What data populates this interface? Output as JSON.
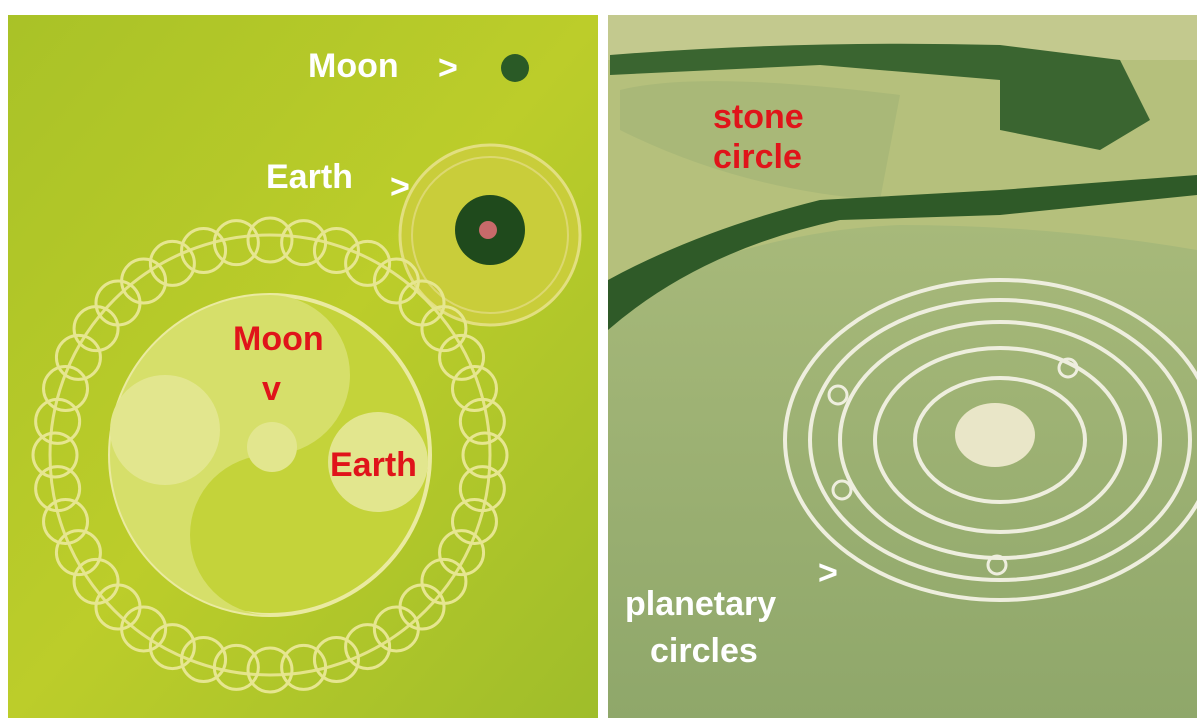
{
  "left_panel": {
    "labels": {
      "moon_top": "Moon",
      "moon_top_arrow": ">",
      "earth_top": "Earth",
      "earth_top_arrow": ">",
      "moon_inner": "Moon",
      "moon_inner_arrow": "v",
      "earth_inner": "Earth"
    }
  },
  "right_panel": {
    "labels": {
      "stone_circle": [
        "stone",
        "circle"
      ],
      "planetary_circles": [
        "planetary",
        "circles"
      ],
      "planetary_arrow": ">"
    }
  }
}
